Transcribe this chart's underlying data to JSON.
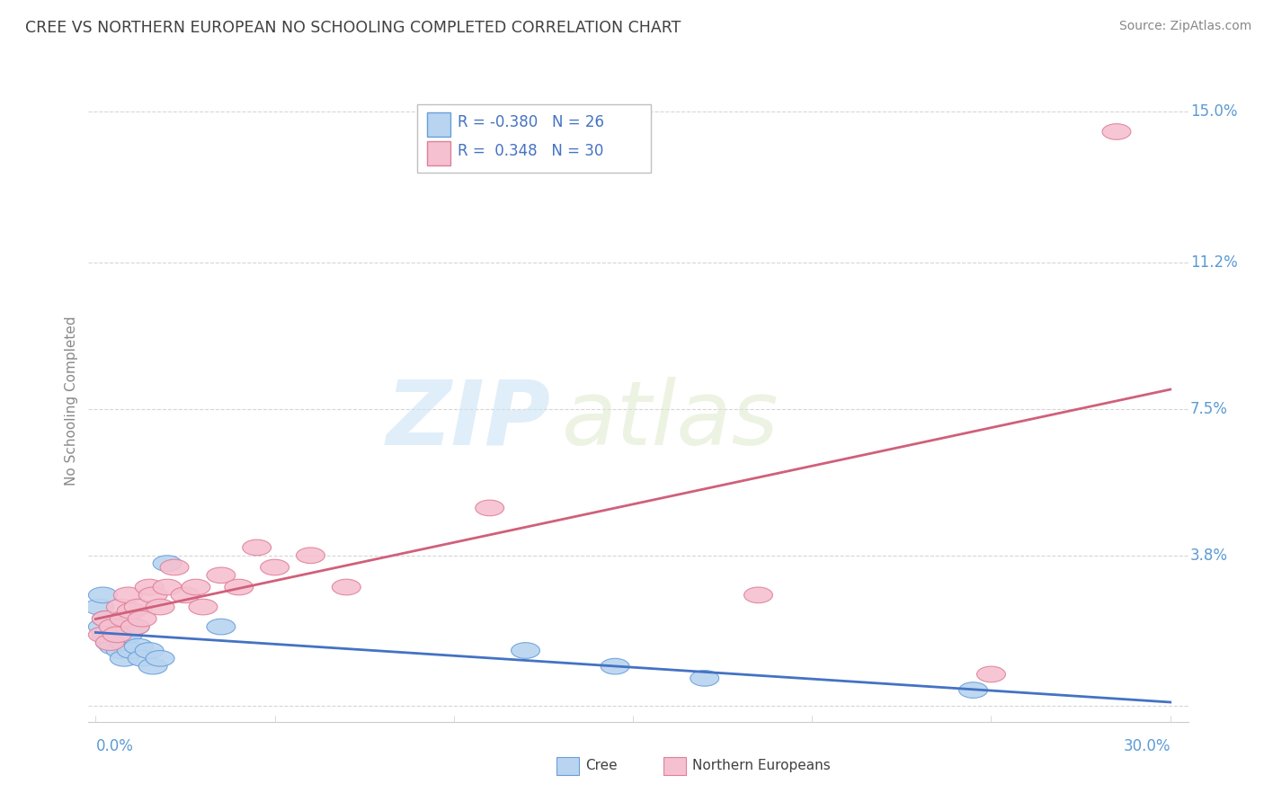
{
  "title": "CREE VS NORTHERN EUROPEAN NO SCHOOLING COMPLETED CORRELATION CHART",
  "source": "Source: ZipAtlas.com",
  "ylabel": "No Schooling Completed",
  "xlim": [
    -0.002,
    0.305
  ],
  "ylim": [
    -0.004,
    0.158
  ],
  "ytick_vals": [
    0.0,
    0.038,
    0.075,
    0.112,
    0.15
  ],
  "ytick_labels": [
    "",
    "3.8%",
    "7.5%",
    "11.2%",
    "15.0%"
  ],
  "xtick_vals": [
    0.0,
    0.3
  ],
  "xtick_labels": [
    "0.0%",
    "30.0%"
  ],
  "cree_color": "#b8d4f0",
  "cree_edge_color": "#6a9fd8",
  "northern_color": "#f5c0d0",
  "northern_edge_color": "#e08098",
  "trend_cree_color": "#4472c4",
  "trend_northern_color": "#d0607a",
  "watermark_zip": "ZIP",
  "watermark_atlas": "atlas",
  "cree_R": -0.38,
  "cree_N": 26,
  "northern_R": 0.348,
  "northern_N": 30,
  "cree_points_x": [
    0.001,
    0.002,
    0.002,
    0.003,
    0.003,
    0.004,
    0.005,
    0.005,
    0.006,
    0.007,
    0.008,
    0.008,
    0.009,
    0.01,
    0.011,
    0.012,
    0.013,
    0.015,
    0.016,
    0.018,
    0.02,
    0.035,
    0.12,
    0.145,
    0.17,
    0.245
  ],
  "cree_points_y": [
    0.025,
    0.02,
    0.028,
    0.022,
    0.018,
    0.016,
    0.018,
    0.015,
    0.02,
    0.014,
    0.016,
    0.012,
    0.018,
    0.014,
    0.02,
    0.015,
    0.012,
    0.014,
    0.01,
    0.012,
    0.036,
    0.02,
    0.014,
    0.01,
    0.007,
    0.004
  ],
  "northern_points_x": [
    0.002,
    0.003,
    0.004,
    0.005,
    0.006,
    0.007,
    0.008,
    0.009,
    0.01,
    0.011,
    0.012,
    0.013,
    0.015,
    0.016,
    0.018,
    0.02,
    0.022,
    0.025,
    0.028,
    0.03,
    0.035,
    0.04,
    0.045,
    0.05,
    0.06,
    0.07,
    0.11,
    0.185,
    0.25,
    0.285
  ],
  "northern_points_y": [
    0.018,
    0.022,
    0.016,
    0.02,
    0.018,
    0.025,
    0.022,
    0.028,
    0.024,
    0.02,
    0.025,
    0.022,
    0.03,
    0.028,
    0.025,
    0.03,
    0.035,
    0.028,
    0.03,
    0.025,
    0.033,
    0.03,
    0.04,
    0.035,
    0.038,
    0.03,
    0.05,
    0.028,
    0.008,
    0.145
  ],
  "grid_color": "#cccccc",
  "background_color": "#ffffff",
  "title_color": "#404040",
  "tick_label_color": "#5b9bd5"
}
